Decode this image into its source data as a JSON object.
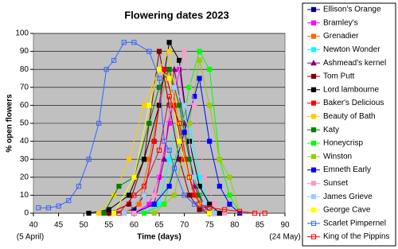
{
  "chart_data": {
    "type": "line",
    "title": "Flowering dates 2023",
    "x_label": "Time (days)",
    "y_label": "% open flowers",
    "start_date_label": "(5 April)",
    "end_date_label": "(24 May)",
    "xlim": [
      40,
      90
    ],
    "xticks": [
      40,
      45,
      50,
      55,
      60,
      65,
      70,
      75,
      80,
      85,
      90
    ],
    "ylim": [
      0,
      100
    ],
    "yticks": [
      0,
      10,
      20,
      30,
      40,
      50,
      60,
      70,
      80,
      90,
      100
    ],
    "grid": true,
    "series": [
      {
        "name": "Ellison's Orange",
        "color": "#000080",
        "marker": "square",
        "x": [
          56,
          60,
          62,
          64,
          66,
          68,
          70,
          72,
          74,
          76
        ],
        "values": [
          0,
          2,
          10,
          40,
          80,
          60,
          30,
          10,
          3,
          0
        ]
      },
      {
        "name": "Bramley's",
        "color": "#ff00ff",
        "marker": "square",
        "x": [
          60,
          63,
          65,
          67,
          69,
          71,
          73,
          75,
          77
        ],
        "values": [
          0,
          5,
          20,
          50,
          80,
          40,
          15,
          5,
          0
        ]
      },
      {
        "name": "Grenadier",
        "color": "#ff6600",
        "marker": "square",
        "x": [
          58,
          61,
          63,
          65,
          67,
          69,
          71,
          73,
          75
        ],
        "values": [
          0,
          5,
          30,
          60,
          80,
          50,
          20,
          5,
          0
        ]
      },
      {
        "name": "Newton Wonder",
        "color": "#00ffff",
        "marker": "square",
        "x": [
          62,
          65,
          67,
          69,
          71,
          73,
          75,
          77
        ],
        "values": [
          0,
          5,
          30,
          60,
          50,
          20,
          5,
          0
        ]
      },
      {
        "name": "Ashmead's kernel",
        "color": "#800080",
        "marker": "triangle",
        "x": [
          60,
          64,
          66,
          68,
          70,
          72,
          74,
          76
        ],
        "values": [
          0,
          5,
          30,
          80,
          50,
          15,
          3,
          0
        ]
      },
      {
        "name": "Tom Putt",
        "color": "#800000",
        "marker": "square",
        "x": [
          55,
          59,
          62,
          65,
          67,
          69,
          71,
          73,
          75
        ],
        "values": [
          0,
          5,
          30,
          90,
          60,
          30,
          10,
          2,
          0
        ]
      },
      {
        "name": "Lord lambourne",
        "color": "#000000",
        "marker": "square",
        "x": [
          51,
          55,
          59,
          62,
          65,
          67,
          69,
          71,
          73,
          75,
          77
        ],
        "values": [
          0,
          2,
          10,
          30,
          60,
          95,
          85,
          40,
          15,
          5,
          0
        ]
      },
      {
        "name": "Baker's Delicious",
        "color": "#ff0000",
        "marker": "square",
        "x": [
          58,
          62,
          64,
          66,
          68,
          70,
          72,
          74,
          76
        ],
        "values": [
          0,
          10,
          40,
          80,
          60,
          30,
          10,
          3,
          0
        ]
      },
      {
        "name": "Beauty of Bath",
        "color": "#ffcc00",
        "marker": "square",
        "x": [
          53,
          56,
          59,
          62,
          65,
          67,
          69,
          71,
          73,
          75
        ],
        "values": [
          0,
          10,
          30,
          60,
          80,
          90,
          50,
          20,
          5,
          0
        ]
      },
      {
        "name": "Katy",
        "color": "#008000",
        "marker": "square",
        "x": [
          54,
          57,
          60,
          63,
          65,
          67,
          69,
          71,
          73,
          75
        ],
        "values": [
          0,
          15,
          20,
          50,
          70,
          80,
          60,
          30,
          10,
          0
        ]
      },
      {
        "name": "Honeycrisp",
        "color": "#00ff00",
        "marker": "square",
        "x": [
          62,
          66,
          69,
          71,
          73,
          75,
          77,
          79,
          81
        ],
        "values": [
          0,
          5,
          40,
          70,
          90,
          80,
          30,
          10,
          0
        ]
      },
      {
        "name": "Winston",
        "color": "#99cc00",
        "marker": "square",
        "x": [
          64,
          68,
          71,
          73,
          75,
          77,
          79,
          81
        ],
        "values": [
          0,
          10,
          50,
          85,
          60,
          30,
          20,
          0
        ]
      },
      {
        "name": "Emneth Early",
        "color": "#0000ff",
        "marker": "square",
        "x": [
          60,
          64,
          67,
          70,
          72,
          73,
          75,
          77,
          79,
          81
        ],
        "values": [
          0,
          5,
          15,
          45,
          65,
          75,
          40,
          15,
          5,
          0
        ]
      },
      {
        "name": "Sunset",
        "color": "#ff99cc",
        "marker": "square",
        "x": [
          60,
          64,
          66,
          68,
          70,
          72,
          74,
          76,
          78
        ],
        "values": [
          0,
          10,
          40,
          70,
          90,
          60,
          20,
          5,
          0
        ]
      },
      {
        "name": "James Grieve",
        "color": "#99ccff",
        "marker": "square",
        "x": [
          58,
          62,
          64,
          66,
          68,
          70,
          72,
          74,
          76
        ],
        "values": [
          0,
          10,
          30,
          50,
          70,
          60,
          20,
          5,
          0
        ]
      },
      {
        "name": "George Cave",
        "color": "#ffff00",
        "marker": "square",
        "x": [
          56,
          60,
          63,
          65,
          67,
          69,
          71,
          73,
          75
        ],
        "values": [
          0,
          20,
          60,
          80,
          75,
          40,
          20,
          5,
          0
        ]
      },
      {
        "name": "Scarlet Pimpernel",
        "color": "#3366ff",
        "marker": "open-square",
        "x": [
          41,
          43,
          45,
          47,
          49,
          51,
          53,
          54.5,
          56,
          58,
          60,
          63,
          65,
          66,
          67,
          68,
          70,
          72,
          74
        ],
        "values": [
          3,
          3,
          4,
          7,
          15,
          30,
          50,
          80,
          85,
          95,
          95,
          90,
          75,
          40,
          35,
          25,
          10,
          5,
          3
        ]
      },
      {
        "name": "King of the Pippins",
        "color": "#ff0000",
        "marker": "open-square",
        "x": [
          57,
          60,
          62,
          65,
          67,
          69,
          71,
          73,
          75,
          78,
          81,
          84,
          86
        ],
        "values": [
          0,
          10,
          15,
          35,
          65,
          50,
          20,
          5,
          3,
          2,
          1,
          0,
          0
        ]
      }
    ]
  }
}
